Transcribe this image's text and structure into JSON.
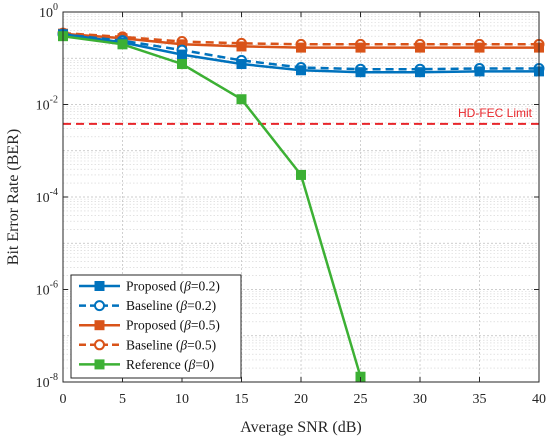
{
  "chart_data": {
    "type": "line",
    "title": "",
    "xlabel": "Average SNR (dB)",
    "ylabel": "Bit Error Rate (BER)",
    "x": [
      0,
      5,
      10,
      15,
      20,
      25,
      30,
      35,
      40
    ],
    "xticks": [
      "0",
      "5",
      "10",
      "15",
      "20",
      "25",
      "30",
      "35",
      "40"
    ],
    "xlim": [
      0,
      40
    ],
    "yscale": "log",
    "ylim": [
      1e-08,
      1
    ],
    "yticks": [
      {
        "value": 1,
        "base": "10",
        "exp": "0"
      },
      {
        "value": 0.01,
        "base": "10",
        "exp": "-2"
      },
      {
        "value": 0.0001,
        "base": "10",
        "exp": "-4"
      },
      {
        "value": 1e-06,
        "base": "10",
        "exp": "-6"
      },
      {
        "value": 1e-08,
        "base": "10",
        "exp": "-8"
      }
    ],
    "grid": true,
    "legend_position": "bottom-left",
    "series": [
      {
        "name": "Proposed (β=0.2)",
        "name_prefix": "Proposed (",
        "name_symbol": "β",
        "name_suffix": "=0.2)",
        "color": "#0072BD",
        "linestyle": "solid",
        "marker": "square",
        "values": [
          0.33,
          0.22,
          0.12,
          0.075,
          0.055,
          0.05,
          0.05,
          0.052,
          0.052
        ]
      },
      {
        "name": "Baseline (β=0.2)",
        "name_prefix": "Baseline (",
        "name_symbol": "β",
        "name_suffix": "=0.2)",
        "color": "#0072BD",
        "linestyle": "dashed",
        "marker": "circle",
        "values": [
          0.33,
          0.24,
          0.15,
          0.09,
          0.063,
          0.058,
          0.058,
          0.06,
          0.06
        ]
      },
      {
        "name": "Proposed (β=0.5)",
        "name_prefix": "Proposed (",
        "name_symbol": "β",
        "name_suffix": "=0.5)",
        "color": "#D95319",
        "linestyle": "solid",
        "marker": "square",
        "values": [
          0.34,
          0.27,
          0.2,
          0.18,
          0.17,
          0.17,
          0.17,
          0.17,
          0.17
        ]
      },
      {
        "name": "Baseline (β=0.5)",
        "name_prefix": "Baseline (",
        "name_symbol": "β",
        "name_suffix": "=0.5)",
        "color": "#D95319",
        "linestyle": "dashed",
        "marker": "circle",
        "values": [
          0.35,
          0.29,
          0.23,
          0.21,
          0.2,
          0.2,
          0.2,
          0.2,
          0.2
        ]
      },
      {
        "name": "Reference (β=0)",
        "name_prefix": "Reference (",
        "name_symbol": "β",
        "name_suffix": "=0)",
        "color": "#3CB034",
        "linestyle": "solid",
        "marker": "square",
        "values": [
          0.3,
          0.2,
          0.075,
          0.013,
          0.0003,
          1.3e-08,
          null,
          null,
          null
        ]
      }
    ],
    "annotations": [
      {
        "type": "hline",
        "y": 0.0038,
        "label": "HD-FEC Limit",
        "color": "#E8262B",
        "linestyle": "dashed"
      }
    ]
  }
}
